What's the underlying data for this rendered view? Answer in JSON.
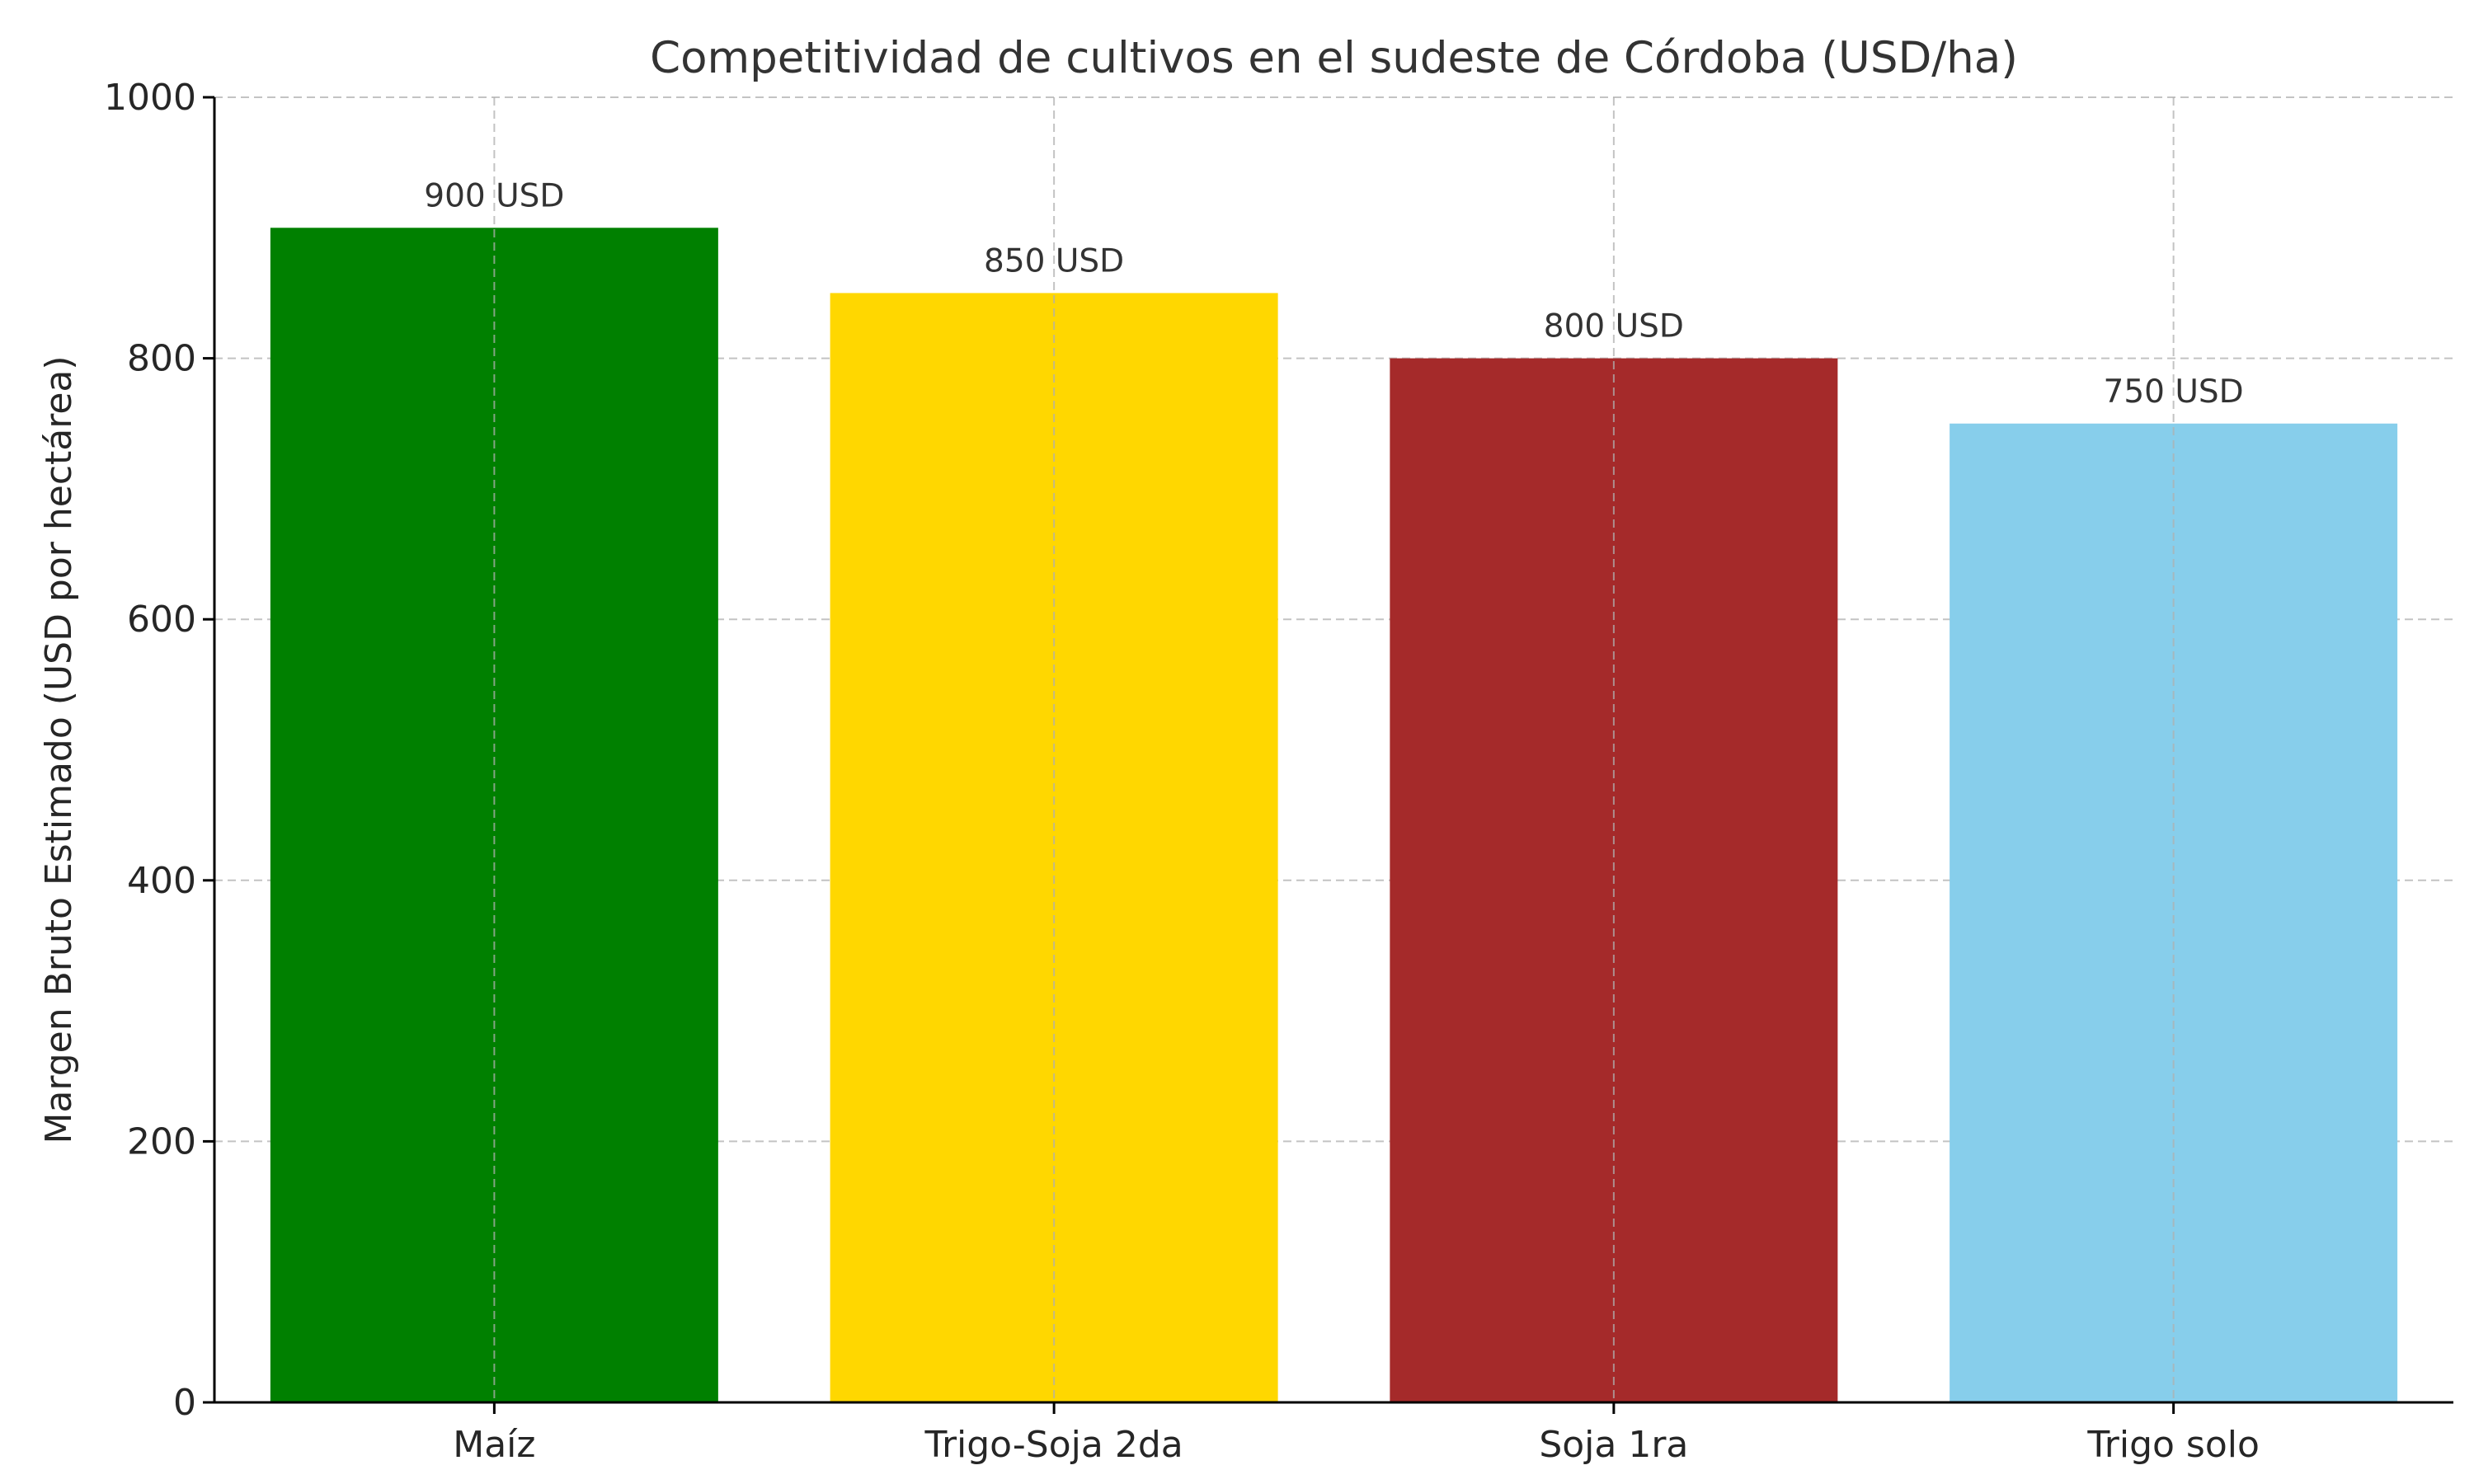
{
  "chart_data": {
    "type": "bar",
    "title": "Competitividad de cultivos en el sudeste de Córdoba (USD/ha)",
    "xlabel": "",
    "ylabel": "Margen Bruto Estimado (USD por hectárea)",
    "categories": [
      "Maíz",
      "Trigo-Soja 2da",
      "Soja 1ra",
      "Trigo solo"
    ],
    "values": [
      900,
      850,
      800,
      750
    ],
    "data_labels": [
      "900 USD",
      "850 USD",
      "800 USD",
      "750 USD"
    ],
    "colors": [
      "#008000",
      "#FFD700",
      "#A52A2A",
      "#87CEEB"
    ],
    "ylim": [
      0,
      1000
    ],
    "yticks": [
      0,
      200,
      400,
      600,
      800,
      1000
    ],
    "ytick_labels": [
      "0",
      "200",
      "400",
      "600",
      "800",
      "1000"
    ],
    "grid": true,
    "legend": "none"
  }
}
